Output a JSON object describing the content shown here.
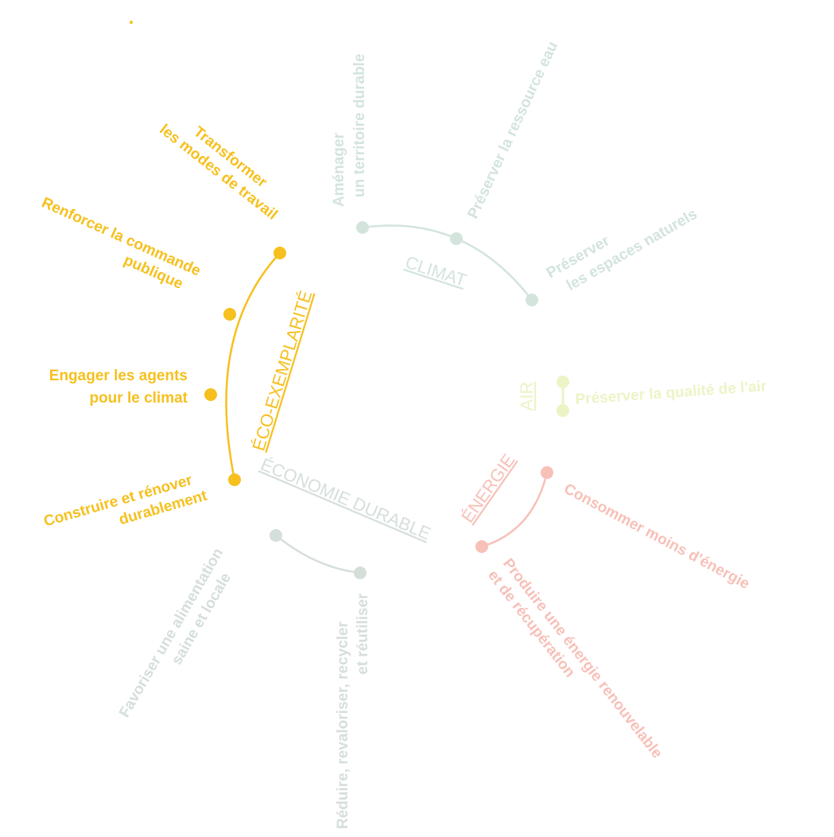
{
  "colors": {
    "eco_exemplarite": "#f6c01e",
    "climat": "#d3e4dc",
    "air": "#eef3c6",
    "energie": "#f7c0b8",
    "economie_durable": "#d5dfd9"
  },
  "themes": {
    "eco_exemplarite": "ÉCO-EXEMPLARITÉ",
    "climat": "CLIMAT",
    "air": "AIR",
    "energie": "ÉNERGIE",
    "economie_durable": "ÉCONOMIE DURABLE"
  },
  "actions": {
    "transformer_1": "Transformer",
    "transformer_2": "les modes de travail",
    "renforcer_1": "Renforcer la commande",
    "renforcer_2": "publique",
    "engager_1": "Engager les agents",
    "engager_2": "pour le climat",
    "construire_1": "Construire et rénover",
    "construire_2": "durablement",
    "amenager_1": "Aménager",
    "amenager_2": "un territoire durable",
    "ressource_eau": "Préserver la ressource eau",
    "espaces_1": "Préserver",
    "espaces_2": "les espaces naturels",
    "qualite_air": "Préserver la qualité de l'air",
    "consommer": "Consommer moins d'énergie",
    "produire_1": "Produire une énergie renouvelable",
    "produire_2": "et de récupération",
    "reduire_1": "Réduire, revaloriser, recycler",
    "reduire_2": "et réutiliser",
    "favoriser_1": "Favoriser une alimentation",
    "favoriser_2": "saine et locale"
  }
}
